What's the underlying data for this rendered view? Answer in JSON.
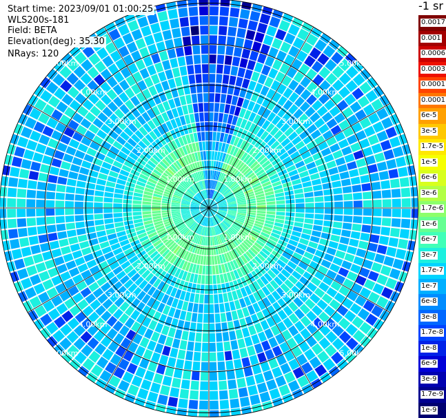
{
  "header": {
    "start_time": "Start time: 2023/09/01 01:00:25",
    "instrument": "WLS200s-181",
    "field": "Field: BETA",
    "elevation": "Elevation(deg): 35.30",
    "nrays": "NRays: 120"
  },
  "colorbar": {
    "unit_label": "-1 sr",
    "labels": [
      "0.0017",
      "0.001",
      "0.0006",
      "0.0003",
      "0.00017",
      "0.0001",
      "6e-5",
      "3e-5",
      "1.7e-5",
      "1e-5",
      "6e-6",
      "3e-6",
      "1.7e-6",
      "1e-6",
      "6e-7",
      "3e-7",
      "1.7e-7",
      "1e-7",
      "6e-8",
      "3e-8",
      "1.7e-8",
      "1e-8",
      "6e-9",
      "3e-9",
      "1.7e-9",
      "1e-9"
    ],
    "colors": [
      "#800000",
      "#a30000",
      "#cc0000",
      "#ee1100",
      "#ff4400",
      "#ff7700",
      "#ffa000",
      "#ffc800",
      "#ffe800",
      "#f6ff00",
      "#d8ff1e",
      "#b2ff45",
      "#8cff6b",
      "#65ff92",
      "#40ffb8",
      "#1cf0df",
      "#00d4ff",
      "#00b0ff",
      "#008cff",
      "#0068ff",
      "#0044ff",
      "#0022e8",
      "#0000d8",
      "#0000b0",
      "#000090",
      "#000070"
    ]
  },
  "chart_data": {
    "type": "heatmap",
    "projection": "polar PPI scan",
    "field": "BETA",
    "nrays": 120,
    "range_unit": "km",
    "range_rings_km": [
      1.0,
      2.0,
      3.0,
      4.0,
      5.0
    ],
    "ring_labels": [
      "1.00km",
      "2.00km",
      "3.00km",
      "4.00km",
      "5.00km"
    ],
    "max_range_km": 5.1,
    "spoke_interval_deg": 30,
    "color_scale": "log",
    "value_range": [
      1e-09,
      0.0017
    ],
    "dominant_value_approx": 1.7e-07,
    "inner_region_value_approx": 1e-06
  }
}
